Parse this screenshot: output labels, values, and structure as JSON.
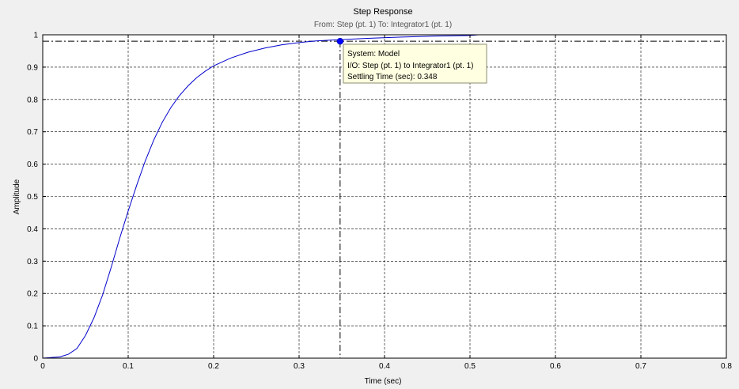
{
  "chart_data": {
    "type": "line",
    "title": "Step Response",
    "subtitle": "From: Step (pt. 1)  To: Integrator1 (pt. 1)",
    "xlabel": "Time (sec)",
    "ylabel": "Amplitude",
    "xlim": [
      0,
      0.8
    ],
    "ylim": [
      0,
      1
    ],
    "x_ticks": [
      "0",
      "0.1",
      "0.2",
      "0.3",
      "0.4",
      "0.5",
      "0.6",
      "0.7",
      "0.8"
    ],
    "y_ticks": [
      "0",
      "0.1",
      "0.2",
      "0.3",
      "0.4",
      "0.5",
      "0.6",
      "0.7",
      "0.8",
      "0.9",
      "1"
    ],
    "grid": true,
    "series": [
      {
        "color": "#0000cc",
        "x": [
          0,
          0.02,
          0.03,
          0.04,
          0.05,
          0.06,
          0.07,
          0.08,
          0.09,
          0.1,
          0.11,
          0.12,
          0.13,
          0.14,
          0.15,
          0.16,
          0.17,
          0.18,
          0.19,
          0.2,
          0.22,
          0.24,
          0.26,
          0.28,
          0.3,
          0.32,
          0.348,
          0.38,
          0.42,
          0.46,
          0.5,
          0.51,
          0.8
        ],
        "y": [
          0,
          0.004,
          0.012,
          0.03,
          0.07,
          0.125,
          0.195,
          0.28,
          0.37,
          0.455,
          0.535,
          0.61,
          0.675,
          0.73,
          0.775,
          0.812,
          0.842,
          0.867,
          0.887,
          0.904,
          0.928,
          0.946,
          0.959,
          0.969,
          0.976,
          0.981,
          0.985,
          0.989,
          0.993,
          0.996,
          0.998,
          1.0,
          1.0
        ]
      }
    ],
    "reference_lines": {
      "settling_level_y": 0.98,
      "settling_time_x": 0.348,
      "final_value_y": 1.0
    },
    "marker": {
      "x": 0.348,
      "y": 0.98,
      "color": "#0000ff"
    },
    "datatip": {
      "lines": [
        "System: Model",
        "I/O: Step (pt. 1) to Integrator1 (pt. 1)",
        "Settling Time (sec): 0.348"
      ],
      "background": "#ffffe1",
      "border": "#8c8c6e"
    },
    "colors": {
      "background": "#f0f0f0",
      "plot_background": "#ffffff",
      "axis": "#000000",
      "grid": "#000000"
    }
  }
}
